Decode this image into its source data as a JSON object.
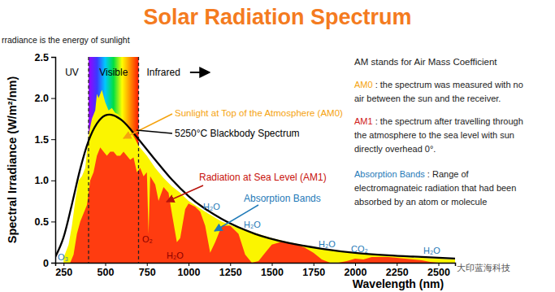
{
  "chart_data": {
    "type": "area",
    "title": "Solar Radiation Spectrum",
    "subtitle": "rradiance is the energy of sunlight",
    "x_label": "Wavelength (nm)",
    "y_label": "Spectral Irradiance (W/m²/nm)",
    "xlim": [
      200,
      2600
    ],
    "ylim": [
      0,
      2.5
    ],
    "xticks": [
      250,
      500,
      750,
      1000,
      1250,
      1500,
      1750,
      2000,
      2250,
      2500
    ],
    "yticks": [
      0,
      0.5,
      {
        "value": 1,
        "label": "1.0"
      },
      1.5,
      {
        "value": 2,
        "label": "2.0"
      },
      2.5
    ],
    "grid": false,
    "visible_range": [
      400,
      700
    ],
    "band_labels": [
      "UV",
      "Visible",
      "Infrared"
    ],
    "series": [
      {
        "name": "Sunlight at Top of the Atmosphere (AM0)",
        "type": "area",
        "color": "#fbf500",
        "x": [
          250,
          280,
          300,
          320,
          340,
          360,
          380,
          400,
          420,
          440,
          450,
          460,
          480,
          500,
          520,
          540,
          560,
          580,
          600,
          620,
          650,
          680,
          700,
          750,
          800,
          850,
          900,
          950,
          1000,
          1100,
          1200,
          1300,
          1400,
          1500,
          1600,
          1700,
          1800,
          1900,
          2000,
          2100,
          2200,
          2300,
          2400,
          2500,
          2600
        ],
        "values": [
          0.06,
          0.22,
          0.45,
          0.75,
          1.0,
          1.05,
          1.15,
          1.55,
          1.75,
          1.85,
          2.05,
          2.0,
          2.1,
          1.95,
          1.85,
          1.88,
          1.82,
          1.8,
          1.75,
          1.68,
          1.6,
          1.5,
          1.42,
          1.3,
          1.15,
          1.03,
          0.93,
          0.85,
          0.75,
          0.62,
          0.5,
          0.42,
          0.36,
          0.3,
          0.25,
          0.21,
          0.17,
          0.14,
          0.12,
          0.1,
          0.085,
          0.07,
          0.06,
          0.05,
          0.04
        ]
      },
      {
        "name": "Radiation at Sea Level (AM1)",
        "type": "area",
        "color": "#ff3c10",
        "x": [
          290,
          310,
          330,
          350,
          370,
          390,
          410,
          430,
          450,
          470,
          490,
          510,
          530,
          550,
          570,
          590,
          610,
          630,
          650,
          670,
          690,
          710,
          730,
          750,
          760,
          770,
          800,
          820,
          850,
          880,
          900,
          930,
          950,
          980,
          1000,
          1040,
          1070,
          1100,
          1130,
          1160,
          1200,
          1250,
          1300,
          1340,
          1380,
          1420,
          1460,
          1500,
          1550,
          1600,
          1650,
          1700,
          1750,
          1800,
          1850,
          1900,
          1950,
          2000,
          2050,
          2100,
          2150,
          2200,
          2250,
          2300,
          2350,
          2400,
          2450,
          2500,
          2550,
          2600
        ],
        "values": [
          0,
          0.1,
          0.35,
          0.5,
          0.6,
          0.7,
          1.0,
          1.1,
          1.3,
          1.4,
          1.35,
          1.3,
          1.35,
          1.35,
          1.3,
          1.3,
          1.35,
          1.3,
          1.25,
          1.28,
          1.1,
          1.15,
          1.05,
          1.1,
          0.35,
          1.05,
          0.95,
          0.75,
          0.92,
          0.85,
          0.6,
          0.25,
          0.3,
          0.65,
          0.72,
          0.68,
          0.62,
          0.45,
          0.12,
          0.25,
          0.45,
          0.45,
          0.35,
          0.1,
          0,
          0.02,
          0.12,
          0.22,
          0.25,
          0.24,
          0.22,
          0.18,
          0.12,
          0.04,
          0,
          0,
          0.02,
          0.05,
          0.04,
          0.07,
          0.07,
          0.07,
          0.06,
          0.05,
          0.04,
          0.03,
          0.01,
          0,
          0,
          0
        ]
      },
      {
        "name": "5250°C Blackbody Spectrum",
        "type": "line",
        "color": "#000000",
        "x": [
          200,
          250,
          300,
          350,
          400,
          450,
          500,
          525,
          550,
          600,
          700,
          800,
          900,
          1000,
          1200,
          1400,
          1600,
          1800,
          2000,
          2200,
          2400,
          2600
        ],
        "values": [
          0.07,
          0.31,
          0.71,
          1.14,
          1.48,
          1.69,
          1.79,
          1.8,
          1.79,
          1.73,
          1.5,
          1.25,
          1.01,
          0.81,
          0.53,
          0.35,
          0.24,
          0.17,
          0.12,
          0.09,
          0.07,
          0.05
        ]
      }
    ],
    "annotations": [
      "Absorption Bands",
      "O₃",
      "O₂",
      "H₂O",
      "H₂O",
      "H₂O",
      "H₂O",
      "CO₂",
      "H₂O"
    ],
    "notes": {
      "heading": "AM stands for Air Mass Coefficient",
      "items": [
        {
          "term": "AM0",
          "lines": [
            ": the spectrum was measured with no",
            "air between the sun and the receiver."
          ]
        },
        {
          "term": "AM1",
          "lines": [
            ": the spectrum after travelling through",
            "the atmosphere to the sea level with sun",
            "directly overhead 0°."
          ]
        },
        {
          "term": "Absorption Bands",
          "lines": [
            ": Range of",
            "electromagnateic radiation that had been",
            "absorbed by an atom or molecule"
          ]
        }
      ]
    },
    "watermark": "大印蓝海科技"
  }
}
